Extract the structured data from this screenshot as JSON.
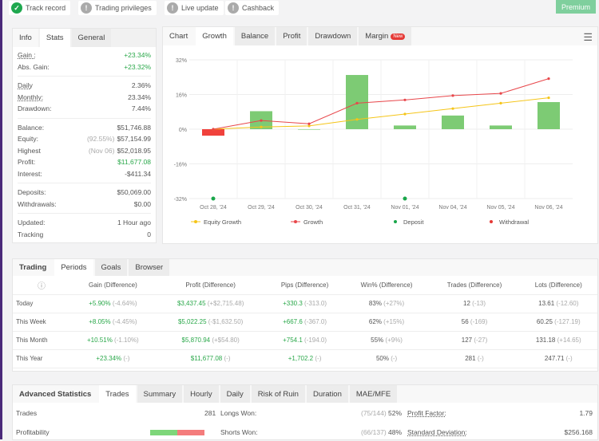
{
  "badges": [
    {
      "label": "Track record",
      "status": "ok"
    },
    {
      "label": "Trading privileges",
      "status": "warn"
    },
    {
      "label": "Live update",
      "status": "warn"
    },
    {
      "label": "Cashback",
      "status": "warn"
    }
  ],
  "premium_label": "Premium",
  "left_tabs": [
    "Info",
    "Stats",
    "General"
  ],
  "stats": {
    "gain": {
      "label": "Gain :",
      "value": "+23.34%"
    },
    "abs_gain": {
      "label": "Abs. Gain:",
      "value": "+23.32%"
    },
    "daily": {
      "label": "Daily",
      "value": "2.36%"
    },
    "monthly": {
      "label": "Monthly:",
      "value": "23.34%"
    },
    "drawdown": {
      "label": "Drawdown:",
      "value": "7.44%"
    },
    "balance": {
      "label": "Balance:",
      "value": "$51,746.88"
    },
    "equity": {
      "label": "Equity:",
      "note": "(92.55%)",
      "value": "$57,154.99"
    },
    "highest": {
      "label": "Highest",
      "note": "(Nov 06)",
      "value": "$52,018.95"
    },
    "profit": {
      "label": "Profit:",
      "value": "$11,677.08"
    },
    "interest": {
      "label": "Interest:",
      "value": "-$411.34"
    },
    "deposits": {
      "label": "Deposits:",
      "value": "$50,069.00"
    },
    "withdrawals": {
      "label": "Withdrawals:",
      "value": "$0.00"
    },
    "updated": {
      "label": "Updated:",
      "value": "1 Hour ago"
    },
    "tracking": {
      "label": "Tracking",
      "value": "0"
    }
  },
  "chart_tabs": [
    "Chart",
    "Growth",
    "Balance",
    "Profit",
    "Drawdown",
    "Margin"
  ],
  "new_label": "New",
  "chart_data": {
    "type": "bar+line",
    "categories": [
      "Oct 28, '24",
      "Oct 29, '24",
      "Oct 30, '24",
      "Oct 31, '24",
      "Nov 01, '24",
      "Nov 04, '24",
      "Nov 05, '24",
      "Nov 06, '24"
    ],
    "yticks": [
      "32%",
      "16%",
      "0%",
      "-16%",
      "-32%"
    ],
    "ylim": [
      -32,
      32
    ],
    "bars": [
      -3,
      8.3,
      0,
      25,
      1.7,
      6.3,
      1.7,
      12.5
    ],
    "series": [
      {
        "name": "Equity Growth",
        "color": "#f5c518",
        "values": [
          0,
          1,
          1.5,
          4.5,
          7,
          9.5,
          12,
          14.5
        ]
      },
      {
        "name": "Growth",
        "color": "#e8474b",
        "values": [
          0,
          4,
          2.5,
          12,
          13.5,
          15.5,
          16.5,
          23.3
        ]
      }
    ],
    "deposits": [
      0,
      4
    ],
    "legend": [
      "Equity Growth",
      "Growth",
      "Deposit",
      "Withdrawal"
    ],
    "colors": {
      "bar_pos": "#7dcb74",
      "bar_neg": "#f0413c",
      "deposit": "#19a64a",
      "withdrawal": "#e53935"
    }
  },
  "period_tabs": [
    "Trading",
    "Periods",
    "Goals",
    "Browser"
  ],
  "period_headers": [
    "Gain (Difference)",
    "Profit (Difference)",
    "Pips (Difference)",
    "Win% (Difference)",
    "Trades (Difference)",
    "Lots (Difference)"
  ],
  "period_rows": [
    {
      "label": "Today",
      "cells": [
        [
          "+5.90%",
          "(-4.64%)"
        ],
        [
          "$3,437.45",
          "(+$2,715.48)"
        ],
        [
          "+330.3",
          "(-313.0)"
        ],
        [
          "83%",
          "(+27%)"
        ],
        [
          "12",
          "(-13)"
        ],
        [
          "13.61",
          "(-12.60)"
        ]
      ]
    },
    {
      "label": "This Week",
      "cells": [
        [
          "+8.05%",
          "(-4.45%)"
        ],
        [
          "$5,022.25",
          "(-$1,632.50)"
        ],
        [
          "+667.6",
          "(-367.0)"
        ],
        [
          "62%",
          "(+15%)"
        ],
        [
          "56",
          "(-169)"
        ],
        [
          "60.25",
          "(-127.19)"
        ]
      ]
    },
    {
      "label": "This Month",
      "cells": [
        [
          "+10.51%",
          "(-1.10%)"
        ],
        [
          "$5,870.94",
          "(+$54.80)"
        ],
        [
          "+754.1",
          "(-194.0)"
        ],
        [
          "55%",
          "(+9%)"
        ],
        [
          "127",
          "(-27)"
        ],
        [
          "131.18",
          "(+14.65)"
        ]
      ]
    },
    {
      "label": "This Year",
      "cells": [
        [
          "+23.34%",
          "(-)"
        ],
        [
          "$11,677.08",
          "(-)"
        ],
        [
          "+1,702.2",
          "(-)"
        ],
        [
          "50%",
          "(-)"
        ],
        [
          "281",
          "(-)"
        ],
        [
          "247.71",
          "(-)"
        ]
      ]
    }
  ],
  "adv_tabs": [
    "Advanced Statistics",
    "Trades",
    "Summary",
    "Hourly",
    "Daily",
    "Risk of Ruin",
    "Duration",
    "MAE/MFE"
  ],
  "adv": {
    "trades_label": "Trades",
    "trades": "281",
    "longs_label": "Longs Won:",
    "longs_note": "(75/144)",
    "longs": "52%",
    "pf_label": "Profit Factor:",
    "pf": "1.79",
    "prof_label": "Profitability",
    "shorts_label": "Shorts Won:",
    "shorts_note": "(66/137)",
    "shorts": "48%",
    "sd_label": "Standard Deviation:",
    "sd": "$256.168"
  },
  "profitability_win_pct": 50
}
